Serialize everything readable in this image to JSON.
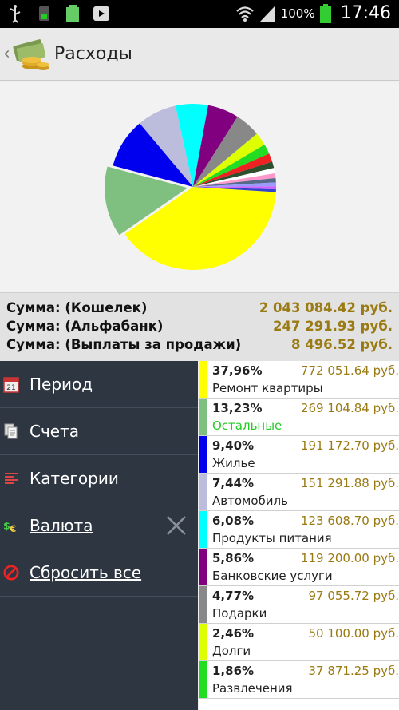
{
  "status_bar": {
    "battery": "100%",
    "time": "17:46"
  },
  "header": {
    "title": "Расходы",
    "back_icon": "chevron-left-icon",
    "logo_icon": "money-stack-icon"
  },
  "chart_data": {
    "type": "pie",
    "title": "",
    "slices": [
      {
        "label": "Ремонт квартиры",
        "value": 37.96,
        "color": "#ffff00"
      },
      {
        "label": "Остальные",
        "value": 13.23,
        "color": "#7fbf7f"
      },
      {
        "label": "Жилье",
        "value": 9.4,
        "color": "#0000ee"
      },
      {
        "label": "Автомобиль",
        "value": 7.44,
        "color": "#bcbcdc"
      },
      {
        "label": "Продукты питания",
        "value": 6.08,
        "color": "#00ffff"
      },
      {
        "label": "Банковские услуги",
        "value": 5.86,
        "color": "#800080"
      },
      {
        "label": "Подарки",
        "value": 4.77,
        "color": "#888888"
      },
      {
        "label": "Долги",
        "value": 2.46,
        "color": "#ddff00"
      },
      {
        "label": "Развлечения",
        "value": 1.86,
        "color": "#22dd22"
      },
      {
        "label": "",
        "value": 1.6,
        "color": "#ee2222"
      },
      {
        "label": "",
        "value": 1.2,
        "color": "#2e4f2e"
      },
      {
        "label": "",
        "value": 1.0,
        "color": "#ffffff"
      },
      {
        "label": "",
        "value": 0.9,
        "color": "#ff99cc"
      },
      {
        "label": "",
        "value": 0.8,
        "color": "#556b8a"
      },
      {
        "label": "",
        "value": 0.7,
        "color": "#9a9aff"
      },
      {
        "label": "",
        "value": 0.6,
        "color": "#cc66ff"
      },
      {
        "label": "",
        "value": 0.5,
        "color": "#3344cc"
      }
    ]
  },
  "totals": [
    {
      "label": "Сумма: (Кошелек)",
      "value": "2 043 084.42 руб."
    },
    {
      "label": "Сумма: (Альфабанк)",
      "value": "247 291.93 руб."
    },
    {
      "label": "Сумма: (Выплаты за продажи)",
      "value": "8 496.52 руб."
    }
  ],
  "menu": [
    {
      "label": "Период",
      "icon": "calendar-icon",
      "link": false
    },
    {
      "label": "Счета",
      "icon": "accounts-icon",
      "link": false
    },
    {
      "label": "Категории",
      "icon": "list-icon",
      "link": false
    },
    {
      "label": "Валюта",
      "icon": "currency-icon",
      "link": true,
      "clearable": true
    },
    {
      "label": "Сбросить все",
      "icon": "reset-icon",
      "link": true
    }
  ],
  "categories": [
    {
      "percent": "37,96%",
      "amount": "772 051.64 руб.",
      "name": "Ремонт квартиры",
      "color": "#ffff00",
      "name_color": "#222222"
    },
    {
      "percent": "13,23%",
      "amount": "269 104.84 руб.",
      "name": "Остальные",
      "color": "#7fbf7f",
      "name_color": "#22cc22"
    },
    {
      "percent": "9,40%",
      "amount": "191 172.70 руб.",
      "name": "Жилье",
      "color": "#0000ee",
      "name_color": "#222222"
    },
    {
      "percent": "7,44%",
      "amount": "151 291.88 руб.",
      "name": "Автомобиль",
      "color": "#bcbcdc",
      "name_color": "#222222"
    },
    {
      "percent": "6,08%",
      "amount": "123 608.70 руб.",
      "name": "Продукты питания",
      "color": "#00ffff",
      "name_color": "#222222"
    },
    {
      "percent": "5,86%",
      "amount": "119 200.00 руб.",
      "name": "Банковские услуги",
      "color": "#800080",
      "name_color": "#222222"
    },
    {
      "percent": "4,77%",
      "amount": "97 055.72 руб.",
      "name": "Подарки",
      "color": "#888888",
      "name_color": "#222222"
    },
    {
      "percent": "2,46%",
      "amount": "50 100.00 руб.",
      "name": "Долги",
      "color": "#ddff00",
      "name_color": "#222222"
    },
    {
      "percent": "1,86%",
      "amount": "37 871.25 руб.",
      "name": "Развлечения",
      "color": "#22dd22",
      "name_color": "#222222"
    }
  ]
}
